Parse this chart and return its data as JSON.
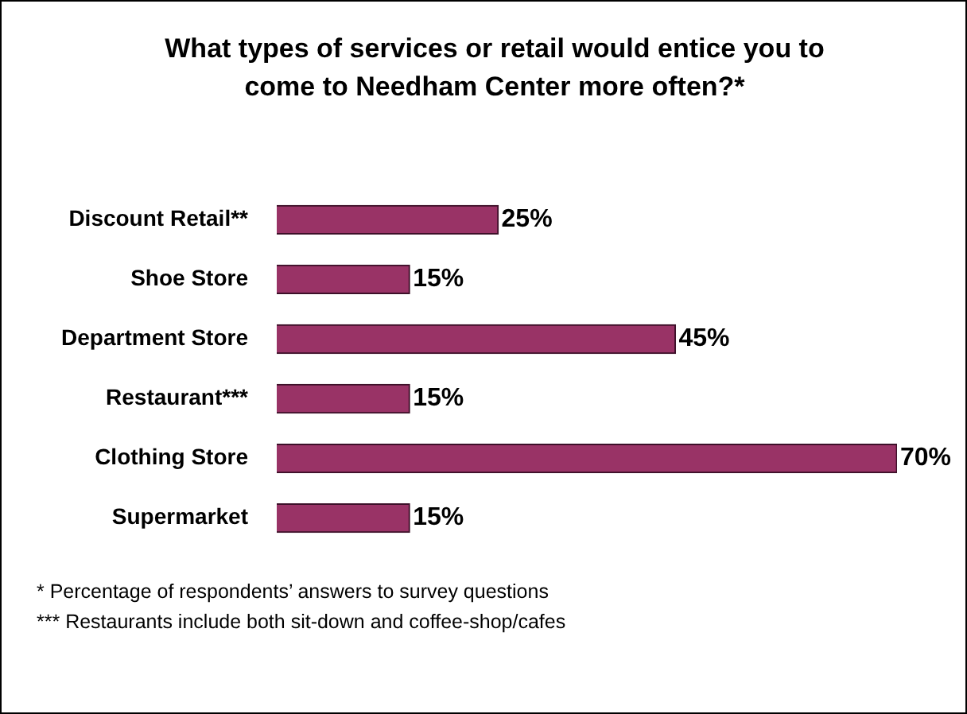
{
  "chart_data": {
    "type": "bar",
    "orientation": "horizontal",
    "title": "What types of services or retail would entice you to come to Needham Center more often?*",
    "categories": [
      "Discount Retail**",
      "Shoe Store",
      "Department Store",
      "Restaurant***",
      "Clothing Store",
      "Supermarket"
    ],
    "values": [
      25,
      15,
      45,
      15,
      70,
      15
    ],
    "value_labels": [
      "25%",
      "15%",
      "45%",
      "15%",
      "70%",
      "15%"
    ],
    "color": "#993366",
    "xlim": [
      0,
      70
    ],
    "grid": false,
    "legend": false,
    "annotations": [
      "*    Percentage of respondents’ answers to survey questions",
      "*** Restaurants include both sit-down and coffee-shop/cafes"
    ]
  }
}
